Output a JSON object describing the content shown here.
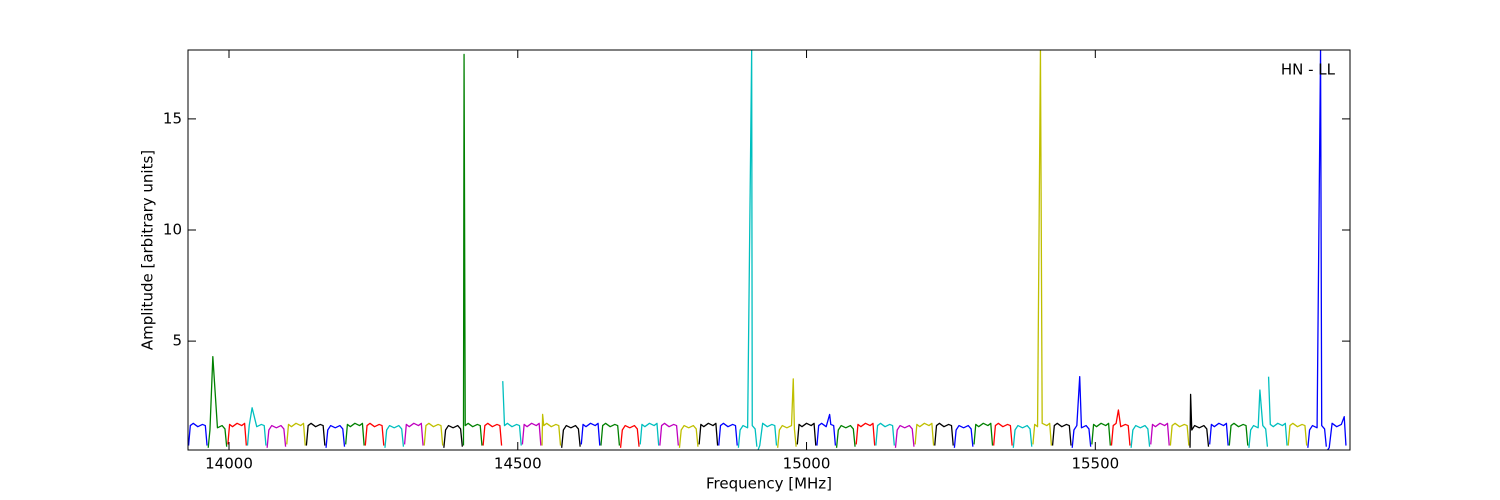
{
  "chart_data": {
    "type": "line",
    "xlabel": "Frequency [MHz]",
    "ylabel": "Amplitude [arbitrary units]",
    "annotation": "HN - LL",
    "xlim": [
      13929,
      15941
    ],
    "ylim": [
      0.1,
      18.1
    ],
    "xticks": [
      14000,
      14500,
      15000,
      15500
    ],
    "yticks": [
      5,
      10,
      15
    ],
    "series": [
      {
        "color": "#0000ff",
        "x": [
          13930,
          13933,
          13938,
          13946,
          13954,
          13959,
          13962
        ],
        "values": [
          0.3,
          1.2,
          1.3,
          1.15,
          1.25,
          1.2,
          0.3
        ]
      },
      {
        "color": "#008000",
        "x": [
          13964,
          13967,
          13972,
          13980,
          13988,
          13993,
          13996
        ],
        "values": [
          0.2,
          1.0,
          4.3,
          1.1,
          1.2,
          1.05,
          0.25
        ]
      },
      {
        "color": "#ff0000",
        "x": [
          13998,
          14001,
          14006,
          14014,
          14022,
          14027,
          14030
        ],
        "values": [
          0.35,
          1.25,
          1.15,
          1.3,
          1.2,
          1.3,
          0.3
        ]
      },
      {
        "color": "#00bfbf",
        "x": [
          14032,
          14035,
          14040,
          14048,
          14056,
          14061,
          14064
        ],
        "values": [
          0.3,
          1.2,
          2.0,
          1.15,
          1.25,
          1.2,
          0.3
        ]
      },
      {
        "color": "#bf00bf",
        "x": [
          14066,
          14069,
          14074,
          14082,
          14090,
          14095,
          14098
        ],
        "values": [
          0.2,
          1.0,
          1.2,
          1.1,
          1.2,
          1.05,
          0.25
        ]
      },
      {
        "color": "#bfbf00",
        "x": [
          14100,
          14103,
          14108,
          14116,
          14124,
          14129,
          14132
        ],
        "values": [
          0.35,
          1.25,
          1.15,
          1.3,
          1.2,
          1.3,
          0.3
        ]
      },
      {
        "color": "#000000",
        "x": [
          14134,
          14137,
          14142,
          14150,
          14158,
          14163,
          14166
        ],
        "values": [
          0.3,
          1.2,
          1.3,
          1.15,
          1.25,
          1.2,
          0.3
        ]
      },
      {
        "color": "#0000ff",
        "x": [
          14168,
          14171,
          14176,
          14184,
          14192,
          14197,
          14200
        ],
        "values": [
          0.2,
          1.0,
          1.2,
          1.1,
          1.2,
          1.05,
          0.25
        ]
      },
      {
        "color": "#008000",
        "x": [
          14202,
          14205,
          14210,
          14218,
          14226,
          14231,
          14234
        ],
        "values": [
          0.35,
          1.25,
          1.15,
          1.3,
          1.2,
          1.3,
          0.3
        ]
      },
      {
        "color": "#ff0000",
        "x": [
          14236,
          14239,
          14244,
          14252,
          14260,
          14265,
          14268
        ],
        "values": [
          0.3,
          1.2,
          1.3,
          1.15,
          1.25,
          1.2,
          0.3
        ]
      },
      {
        "color": "#00bfbf",
        "x": [
          14270,
          14273,
          14278,
          14286,
          14294,
          14299,
          14302
        ],
        "values": [
          0.2,
          1.0,
          1.2,
          1.1,
          1.2,
          1.05,
          0.25
        ]
      },
      {
        "color": "#bf00bf",
        "x": [
          14304,
          14307,
          14312,
          14320,
          14328,
          14333,
          14336
        ],
        "values": [
          0.35,
          1.25,
          1.15,
          1.3,
          1.2,
          1.3,
          0.3
        ]
      },
      {
        "color": "#bfbf00",
        "x": [
          14338,
          14341,
          14346,
          14354,
          14362,
          14367,
          14370
        ],
        "values": [
          0.3,
          1.2,
          1.3,
          1.15,
          1.25,
          1.2,
          0.3
        ]
      },
      {
        "color": "#000000",
        "x": [
          14372,
          14375,
          14380,
          14388,
          14396,
          14401,
          14404
        ],
        "values": [
          0.2,
          1.0,
          1.2,
          1.1,
          1.2,
          1.05,
          0.25
        ]
      },
      {
        "color": "#008000",
        "x": [
          14406,
          14407,
          14409,
          14414,
          14422,
          14430,
          14435,
          14438
        ],
        "values": [
          0.3,
          17.9,
          1.2,
          1.3,
          1.15,
          1.25,
          1.2,
          0.3
        ]
      },
      {
        "color": "#ff0000",
        "x": [
          14440,
          14443,
          14448,
          14456,
          14464,
          14469,
          14472
        ],
        "values": [
          0.3,
          1.2,
          1.3,
          1.15,
          1.25,
          1.2,
          0.3
        ]
      },
      {
        "color": "#00bfbf",
        "x": [
          14474,
          14477,
          14482,
          14490,
          14498,
          14503,
          14506
        ],
        "values": [
          3.2,
          1.2,
          1.3,
          1.15,
          1.25,
          1.2,
          0.3
        ]
      },
      {
        "color": "#bf00bf",
        "x": [
          14508,
          14511,
          14516,
          14524,
          14532,
          14537,
          14540
        ],
        "values": [
          0.35,
          1.25,
          1.15,
          1.3,
          1.2,
          1.3,
          0.3
        ]
      },
      {
        "color": "#bfbf00",
        "x": [
          14542,
          14543,
          14545,
          14550,
          14558,
          14566,
          14571,
          14574
        ],
        "values": [
          0.3,
          1.7,
          1.2,
          1.3,
          1.15,
          1.25,
          1.2,
          0.3
        ]
      },
      {
        "color": "#000000",
        "x": [
          14576,
          14579,
          14584,
          14592,
          14600,
          14605,
          14608
        ],
        "values": [
          0.2,
          1.0,
          1.2,
          1.1,
          1.2,
          1.05,
          0.25
        ]
      },
      {
        "color": "#0000ff",
        "x": [
          14610,
          14613,
          14618,
          14626,
          14634,
          14639,
          14642
        ],
        "values": [
          0.35,
          1.25,
          1.15,
          1.3,
          1.2,
          1.3,
          0.3
        ]
      },
      {
        "color": "#008000",
        "x": [
          14644,
          14647,
          14652,
          14660,
          14668,
          14673,
          14676
        ],
        "values": [
          0.3,
          1.2,
          1.3,
          1.15,
          1.25,
          1.2,
          0.3
        ]
      },
      {
        "color": "#ff0000",
        "x": [
          14678,
          14681,
          14686,
          14694,
          14702,
          14707,
          14710
        ],
        "values": [
          0.2,
          1.0,
          1.2,
          1.1,
          1.2,
          1.05,
          0.25
        ]
      },
      {
        "color": "#00bfbf",
        "x": [
          14712,
          14715,
          14720,
          14728,
          14736,
          14741,
          14744
        ],
        "values": [
          0.35,
          1.25,
          1.15,
          1.3,
          1.2,
          1.3,
          0.3
        ]
      },
      {
        "color": "#bf00bf",
        "x": [
          14746,
          14749,
          14754,
          14762,
          14770,
          14775,
          14778
        ],
        "values": [
          0.3,
          1.2,
          1.3,
          1.15,
          1.25,
          1.2,
          0.3
        ]
      },
      {
        "color": "#bfbf00",
        "x": [
          14780,
          14783,
          14788,
          14796,
          14804,
          14809,
          14812
        ],
        "values": [
          0.2,
          1.0,
          1.2,
          1.1,
          1.2,
          1.05,
          0.25
        ]
      },
      {
        "color": "#000000",
        "x": [
          14814,
          14817,
          14822,
          14830,
          14838,
          14843,
          14846
        ],
        "values": [
          0.35,
          1.25,
          1.15,
          1.3,
          1.2,
          1.3,
          0.3
        ]
      },
      {
        "color": "#0000ff",
        "x": [
          14848,
          14851,
          14856,
          14864,
          14872,
          14877,
          14880
        ],
        "values": [
          0.3,
          1.2,
          1.3,
          1.15,
          1.25,
          1.2,
          0.3
        ]
      },
      {
        "color": "#00bfbf",
        "x": [
          14882,
          14885,
          14890,
          14898,
          14905,
          14906,
          14911,
          14914
        ],
        "values": [
          0.2,
          1.0,
          1.2,
          1.1,
          18.1,
          1.2,
          1.05,
          0.25
        ]
      },
      {
        "color": "#00bfbf",
        "x": [
          14916,
          14919,
          14924,
          14932,
          14940,
          14945,
          14948
        ],
        "values": [
          0.1,
          0.3,
          1.3,
          1.15,
          1.25,
          1.2,
          0.3
        ]
      },
      {
        "color": "#bfbf00",
        "x": [
          14950,
          14953,
          14958,
          14966,
          14974,
          14977,
          14979,
          14982
        ],
        "values": [
          0.2,
          1.0,
          1.2,
          1.1,
          1.2,
          3.3,
          1.05,
          0.25
        ]
      },
      {
        "color": "#000000",
        "x": [
          14984,
          14987,
          14992,
          15000,
          15008,
          15013,
          15016
        ],
        "values": [
          0.35,
          1.25,
          1.15,
          1.3,
          1.2,
          1.3,
          0.3
        ]
      },
      {
        "color": "#0000ff",
        "x": [
          15018,
          15021,
          15026,
          15034,
          15040,
          15042,
          15047,
          15050
        ],
        "values": [
          0.3,
          1.2,
          1.3,
          1.15,
          1.7,
          1.25,
          1.2,
          0.3
        ]
      },
      {
        "color": "#008000",
        "x": [
          15052,
          15055,
          15060,
          15068,
          15076,
          15081,
          15084
        ],
        "values": [
          0.2,
          1.0,
          1.2,
          1.1,
          1.2,
          1.05,
          0.25
        ]
      },
      {
        "color": "#ff0000",
        "x": [
          15086,
          15089,
          15094,
          15102,
          15110,
          15115,
          15118
        ],
        "values": [
          0.35,
          1.25,
          1.15,
          1.3,
          1.2,
          1.3,
          0.3
        ]
      },
      {
        "color": "#00bfbf",
        "x": [
          15120,
          15123,
          15128,
          15136,
          15144,
          15149,
          15152
        ],
        "values": [
          0.3,
          1.2,
          1.3,
          1.15,
          1.25,
          1.2,
          0.3
        ]
      },
      {
        "color": "#bf00bf",
        "x": [
          15154,
          15157,
          15162,
          15170,
          15178,
          15183,
          15186
        ],
        "values": [
          0.2,
          1.0,
          1.2,
          1.1,
          1.2,
          1.05,
          0.25
        ]
      },
      {
        "color": "#bfbf00",
        "x": [
          15188,
          15191,
          15196,
          15204,
          15212,
          15217,
          15220
        ],
        "values": [
          0.35,
          1.25,
          1.15,
          1.3,
          1.2,
          1.3,
          0.3
        ]
      },
      {
        "color": "#000000",
        "x": [
          15222,
          15225,
          15230,
          15238,
          15246,
          15251,
          15254
        ],
        "values": [
          0.3,
          1.2,
          1.3,
          1.15,
          1.25,
          1.2,
          0.3
        ]
      },
      {
        "color": "#0000ff",
        "x": [
          15256,
          15259,
          15264,
          15272,
          15280,
          15285,
          15288
        ],
        "values": [
          0.2,
          1.0,
          1.2,
          1.1,
          1.2,
          1.05,
          0.25
        ]
      },
      {
        "color": "#008000",
        "x": [
          15290,
          15293,
          15298,
          15306,
          15314,
          15319,
          15322
        ],
        "values": [
          0.35,
          1.25,
          1.15,
          1.3,
          1.2,
          1.3,
          0.3
        ]
      },
      {
        "color": "#ff0000",
        "x": [
          15324,
          15327,
          15332,
          15340,
          15348,
          15353,
          15356
        ],
        "values": [
          0.3,
          1.2,
          1.3,
          1.15,
          1.25,
          1.2,
          0.3
        ]
      },
      {
        "color": "#00bfbf",
        "x": [
          15358,
          15361,
          15366,
          15374,
          15382,
          15387,
          15390
        ],
        "values": [
          0.2,
          1.0,
          1.2,
          1.1,
          1.2,
          1.05,
          0.25
        ]
      },
      {
        "color": "#bfbf00",
        "x": [
          15392,
          15395,
          15400,
          15405,
          15408,
          15416,
          15421,
          15424
        ],
        "values": [
          0.35,
          1.25,
          1.15,
          18.1,
          1.3,
          1.2,
          1.3,
          0.3
        ]
      },
      {
        "color": "#000000",
        "x": [
          15426,
          15429,
          15434,
          15442,
          15450,
          15455,
          15458
        ],
        "values": [
          0.3,
          1.2,
          1.3,
          1.15,
          1.25,
          1.2,
          0.3
        ]
      },
      {
        "color": "#0000ff",
        "x": [
          15460,
          15463,
          15468,
          15473,
          15476,
          15484,
          15489,
          15492
        ],
        "values": [
          0.2,
          1.0,
          1.2,
          3.4,
          1.1,
          1.2,
          1.05,
          0.25
        ]
      },
      {
        "color": "#008000",
        "x": [
          15494,
          15497,
          15502,
          15510,
          15518,
          15523,
          15526
        ],
        "values": [
          0.35,
          1.25,
          1.15,
          1.3,
          1.2,
          1.3,
          0.3
        ]
      },
      {
        "color": "#ff0000",
        "x": [
          15528,
          15531,
          15536,
          15540,
          15544,
          15552,
          15557,
          15560
        ],
        "values": [
          0.3,
          1.2,
          1.3,
          1.9,
          1.15,
          1.25,
          1.2,
          0.3
        ]
      },
      {
        "color": "#00bfbf",
        "x": [
          15562,
          15565,
          15570,
          15578,
          15586,
          15591,
          15594
        ],
        "values": [
          0.2,
          1.0,
          1.2,
          1.1,
          1.2,
          1.05,
          0.25
        ]
      },
      {
        "color": "#bf00bf",
        "x": [
          15596,
          15599,
          15604,
          15612,
          15620,
          15625,
          15628
        ],
        "values": [
          0.35,
          1.25,
          1.15,
          1.3,
          1.2,
          1.3,
          0.3
        ]
      },
      {
        "color": "#bfbf00",
        "x": [
          15630,
          15633,
          15638,
          15646,
          15654,
          15659,
          15662
        ],
        "values": [
          0.3,
          1.2,
          1.3,
          1.15,
          1.25,
          1.2,
          0.3
        ]
      },
      {
        "color": "#000000",
        "x": [
          15664,
          15665,
          15667,
          15672,
          15680,
          15688,
          15693,
          15696
        ],
        "values": [
          0.2,
          2.6,
          1.0,
          1.2,
          1.1,
          1.2,
          1.05,
          0.25
        ]
      },
      {
        "color": "#0000ff",
        "x": [
          15698,
          15701,
          15706,
          15714,
          15722,
          15727,
          15730
        ],
        "values": [
          0.35,
          1.25,
          1.15,
          1.3,
          1.2,
          1.3,
          0.3
        ]
      },
      {
        "color": "#008000",
        "x": [
          15732,
          15735,
          15740,
          15748,
          15756,
          15761,
          15764
        ],
        "values": [
          0.3,
          1.2,
          1.3,
          1.15,
          1.25,
          1.2,
          0.3
        ]
      },
      {
        "color": "#00bfbf",
        "x": [
          15766,
          15769,
          15774,
          15782,
          15785,
          15790,
          15795,
          15798
        ],
        "values": [
          0.2,
          1.0,
          1.2,
          1.1,
          2.8,
          1.2,
          1.05,
          0.25
        ]
      },
      {
        "color": "#00bfbf",
        "x": [
          15800,
          15803,
          15808,
          15816,
          15824,
          15829,
          15832
        ],
        "values": [
          3.4,
          1.25,
          1.15,
          1.3,
          1.2,
          1.3,
          0.3
        ]
      },
      {
        "color": "#bfbf00",
        "x": [
          15834,
          15837,
          15842,
          15850,
          15858,
          15863,
          15866
        ],
        "values": [
          0.3,
          1.2,
          1.3,
          1.15,
          1.25,
          1.2,
          0.3
        ]
      },
      {
        "color": "#0000ff",
        "x": [
          15868,
          15871,
          15876,
          15884,
          15890,
          15892,
          15897,
          15900
        ],
        "values": [
          0.2,
          1.0,
          1.2,
          1.1,
          18.1,
          1.2,
          1.05,
          0.25
        ]
      },
      {
        "color": "#0000ff",
        "x": [
          15902,
          15905,
          15910,
          15918,
          15926,
          15931,
          15934
        ],
        "values": [
          0.1,
          0.2,
          1.3,
          1.15,
          1.25,
          1.6,
          0.3
        ]
      }
    ]
  }
}
